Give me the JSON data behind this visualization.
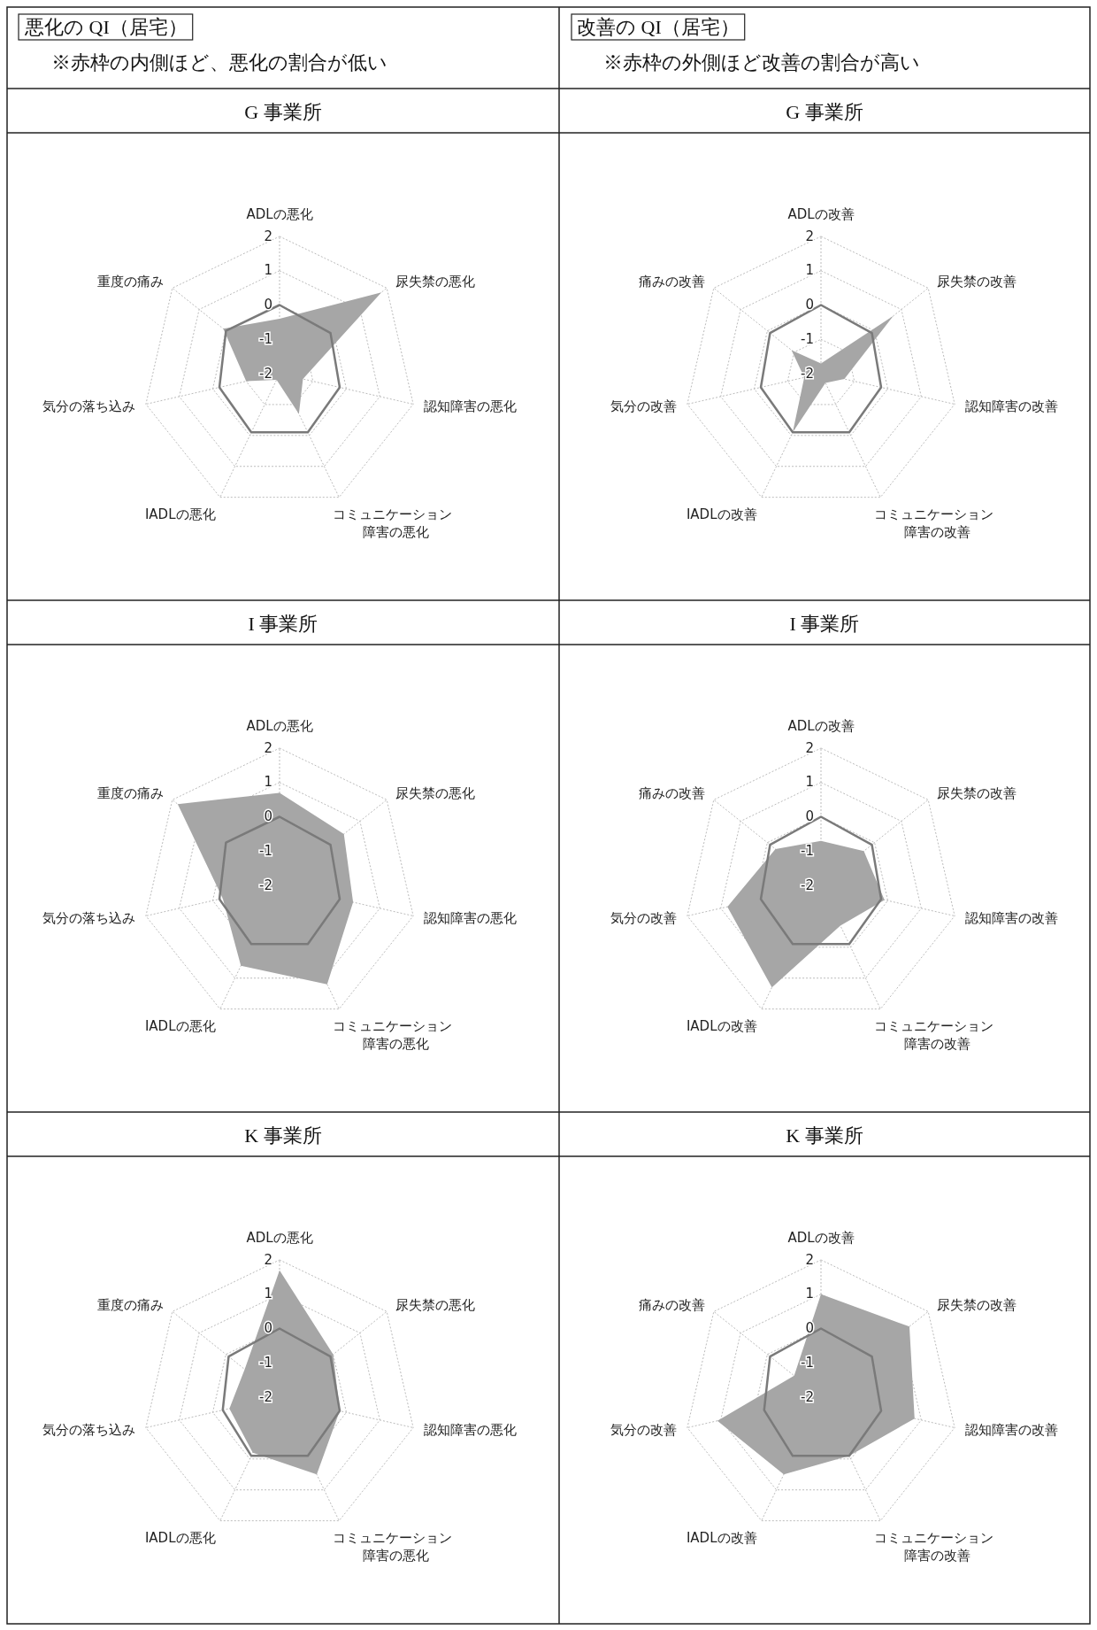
{
  "chart_data": [
    {
      "type": "radar",
      "title": "G 事業所",
      "annotations": [
        "悪化の QI（居宅）",
        "※赤枠の内側ほど、悪化の割合が低い"
      ],
      "categories": [
        "ADLの悪化",
        "尿失禁の悪化",
        "認知障害の悪化",
        "コミュニケーション障害の悪化",
        "IADLの悪化",
        "気分の落ち込み",
        "重度の痛み"
      ],
      "ylim": [
        -2,
        2
      ],
      "yticks": [
        -2,
        -1,
        0,
        1,
        2
      ],
      "grid": true,
      "series": [
        {
          "color": "#a6a6a6",
          "values": [
            -0.4,
            1.8,
            -1.3,
            -0.7,
            -1.8,
            -1.0,
            0.1
          ]
        },
        {
          "line_style": "solid",
          "color": "#7a7a7a",
          "values": [
            0,
            -0.1,
            -0.2,
            -0.1,
            -0.1,
            -0.2,
            0
          ]
        }
      ]
    },
    {
      "type": "radar",
      "title": "G 事業所",
      "annotations": [
        "改善の QI（居宅）",
        "※赤枠の外側ほど改善の割合が高い"
      ],
      "categories": [
        "ADLの改善",
        "尿失禁の改善",
        "認知障害の改善",
        "コミュニケーション障害の改善",
        "IADLの改善",
        "気分の改善",
        "痛みの改善"
      ],
      "ylim": [
        -2,
        2
      ],
      "yticks": [
        -2,
        -1,
        0,
        1,
        2
      ],
      "grid": true,
      "series": [
        {
          "color": "#a6a6a6",
          "values": [
            -1.7,
            0.7,
            -1.3,
            -1.7,
            -0.1,
            -1.5,
            -0.9
          ]
        },
        {
          "line_style": "solid",
          "color": "#7a7a7a",
          "values": [
            0,
            -0.1,
            -0.2,
            -0.1,
            -0.1,
            -0.2,
            -0.1
          ]
        }
      ]
    },
    {
      "type": "radar",
      "title": "I 事業所",
      "categories": [
        "ADLの悪化",
        "尿失禁の悪化",
        "認知障害の悪化",
        "コミュニケーション障害の悪化",
        "IADLの悪化",
        "気分の落ち込み",
        "重度の痛み"
      ],
      "ylim": [
        -2,
        2
      ],
      "yticks": [
        -2,
        -1,
        0,
        1,
        2
      ],
      "grid": true,
      "series": [
        {
          "color": "#a6a6a6",
          "values": [
            0.7,
            0.4,
            0.2,
            1.2,
            0.6,
            -0.3,
            1.8
          ]
        },
        {
          "line_style": "solid",
          "color": "#7a7a7a",
          "values": [
            0,
            -0.1,
            -0.2,
            -0.1,
            -0.1,
            -0.2,
            0
          ]
        }
      ]
    },
    {
      "type": "radar",
      "title": "I 事業所",
      "categories": [
        "ADLの改善",
        "尿失禁の改善",
        "認知障害の改善",
        "コミュニケーション障害の改善",
        "IADLの改善",
        "気分の改善",
        "痛みの改善"
      ],
      "ylim": [
        -2,
        2
      ],
      "yticks": [
        -2,
        -1,
        0,
        1,
        2
      ],
      "grid": true,
      "series": [
        {
          "color": "#a6a6a6",
          "values": [
            -0.7,
            -0.4,
            -0.1,
            -0.7,
            1.3,
            0.8,
            -0.3
          ]
        },
        {
          "line_style": "solid",
          "color": "#7a7a7a",
          "values": [
            0,
            -0.1,
            -0.2,
            -0.1,
            -0.1,
            -0.2,
            -0.1
          ]
        }
      ]
    },
    {
      "type": "radar",
      "title": "K 事業所",
      "categories": [
        "ADLの悪化",
        "尿失禁の悪化",
        "認知障害の悪化",
        "コミュニケーション障害の悪化",
        "IADLの悪化",
        "気分の落ち込み",
        "重度の痛み"
      ],
      "ylim": [
        -2,
        2
      ],
      "yticks": [
        -2,
        -1,
        0,
        1,
        2
      ],
      "grid": true,
      "series": [
        {
          "color": "#a6a6a6",
          "values": [
            1.7,
            0.0,
            -0.2,
            0.5,
            -0.2,
            -0.5,
            -0.7
          ]
        },
        {
          "line_style": "solid",
          "color": "#7a7a7a",
          "values": [
            0,
            -0.1,
            -0.2,
            -0.1,
            -0.1,
            -0.3,
            -0.1
          ]
        }
      ]
    },
    {
      "type": "radar",
      "title": "K 事業所",
      "categories": [
        "ADLの改善",
        "尿失禁の改善",
        "認知障害の改善",
        "コミュニケーション障害の改善",
        "IADLの改善",
        "気分の改善",
        "痛みの改善"
      ],
      "ylim": [
        -2,
        2
      ],
      "yticks": [
        -2,
        -1,
        0,
        1,
        2
      ],
      "grid": true,
      "series": [
        {
          "color": "#a6a6a6",
          "values": [
            1.0,
            1.3,
            0.8,
            -0.1,
            0.5,
            1.1,
            -1.0
          ]
        },
        {
          "line_style": "solid",
          "color": "#7a7a7a",
          "values": [
            0,
            -0.1,
            -0.2,
            -0.1,
            -0.1,
            -0.3,
            -0.1
          ]
        }
      ]
    }
  ]
}
